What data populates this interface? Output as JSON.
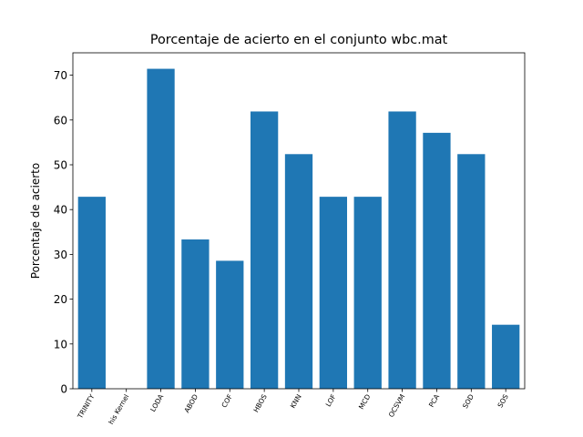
{
  "chart_data": {
    "type": "bar",
    "title": "Porcentaje de acierto en el conjunto wbc.mat",
    "y_label": "Porcentaje de acierto",
    "categories": [
      "TRINITY",
      "his Kernel",
      "LODA",
      "ABOD",
      "COF",
      "HBOS",
      "KNN",
      "LOF",
      "MCD",
      "OCSVM",
      "PCA",
      "SOD",
      "SOS"
    ],
    "values": [
      42.86,
      0,
      71.43,
      33.33,
      28.57,
      61.9,
      52.38,
      42.86,
      42.86,
      61.9,
      57.14,
      52.38,
      14.29
    ],
    "color": "#1f77b4",
    "ylim": [
      0,
      75
    ],
    "yticks": [
      0,
      10,
      20,
      30,
      40,
      50,
      60,
      70
    ],
    "grid": false
  }
}
